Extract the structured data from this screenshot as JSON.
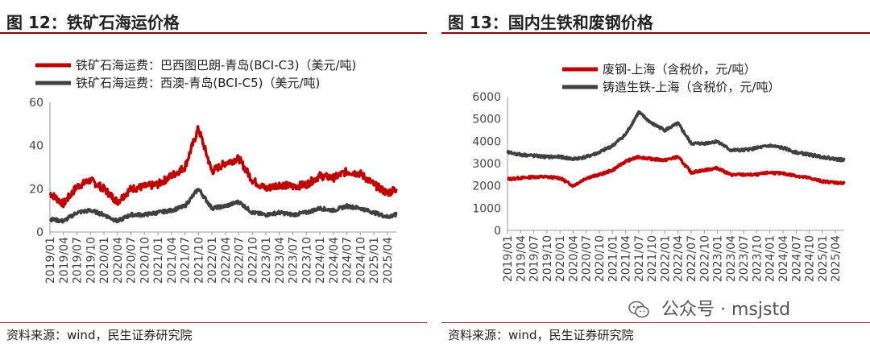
{
  "panels": [
    {
      "title": "图 12：铁矿石海运价格",
      "source": "资料来源：wind，民生证券研究院"
    },
    {
      "title": "图 13：国内生铁和废钢价格",
      "source": "资料来源：wind，民生证券研究院"
    }
  ],
  "watermark": {
    "text": "公众号 · msjstd",
    "icon": "wechat-icon"
  },
  "chart_data": [
    {
      "type": "line",
      "title": "",
      "xlabel": "",
      "ylabel": "",
      "ylim": [
        0,
        60
      ],
      "yticks": [
        "0",
        "20",
        "40",
        "60"
      ],
      "xticks": [
        "2019/01",
        "2019/04",
        "2019/07",
        "2019/10",
        "2020/01",
        "2020/04",
        "2020/07",
        "2020/10",
        "2021/01",
        "2021/04",
        "2021/07",
        "2021/10",
        "2022/01",
        "2022/04",
        "2022/07",
        "2022/10",
        "2023/01",
        "2023/04",
        "2023/07",
        "2023/10",
        "2024/01",
        "2024/04",
        "2024/07",
        "2024/10",
        "2025/01",
        "2025/04"
      ],
      "grid": false,
      "legend": "top-left",
      "x": [
        "2019/01",
        "2019/04",
        "2019/07",
        "2019/10",
        "2020/01",
        "2020/04",
        "2020/07",
        "2020/10",
        "2021/01",
        "2021/04",
        "2021/07",
        "2021/10",
        "2022/01",
        "2022/04",
        "2022/07",
        "2022/10",
        "2023/01",
        "2023/04",
        "2023/07",
        "2023/10",
        "2024/01",
        "2024/04",
        "2024/07",
        "2024/10",
        "2025/01",
        "2025/04",
        "2025/06"
      ],
      "series": [
        {
          "name": "铁矿石海运费：巴西图巴朗-青岛(BCI-C3)（美元/吨)",
          "color": "#c00000",
          "values": [
            18,
            13,
            21,
            24,
            20,
            14,
            20,
            21,
            22,
            26,
            30,
            48,
            28,
            32,
            34,
            24,
            20,
            22,
            21,
            22,
            26,
            25,
            28,
            27,
            22,
            18,
            20
          ]
        },
        {
          "name": "铁矿石海运费：西澳-青岛(BCI-C5)（美元/吨)",
          "color": "#404040",
          "values": [
            6,
            5,
            9,
            10,
            8,
            5,
            8,
            8,
            9,
            10,
            12,
            20,
            11,
            12,
            14,
            9,
            8,
            9,
            8,
            9,
            11,
            10,
            12,
            11,
            9,
            7,
            8
          ]
        }
      ]
    },
    {
      "type": "line",
      "title": "",
      "xlabel": "",
      "ylabel": "",
      "ylim": [
        0,
        6000
      ],
      "yticks": [
        "0",
        "1000",
        "2000",
        "3000",
        "4000",
        "5000",
        "6000"
      ],
      "xticks": [
        "2019/01",
        "2019/04",
        "2019/07",
        "2019/10",
        "2020/01",
        "2020/04",
        "2020/07",
        "2020/10",
        "2021/01",
        "2021/04",
        "2021/07",
        "2021/10",
        "2022/01",
        "2022/04",
        "2022/07",
        "2022/10",
        "2023/01",
        "2023/04",
        "2023/07",
        "2023/10",
        "2024/01",
        "2024/04",
        "2024/07",
        "2024/10",
        "2025/01",
        "2025/04"
      ],
      "grid": false,
      "legend": "top-center",
      "x": [
        "2019/01",
        "2019/04",
        "2019/07",
        "2019/10",
        "2020/01",
        "2020/04",
        "2020/07",
        "2020/10",
        "2021/01",
        "2021/04",
        "2021/07",
        "2021/10",
        "2022/01",
        "2022/04",
        "2022/07",
        "2022/10",
        "2023/01",
        "2023/04",
        "2023/07",
        "2023/10",
        "2024/01",
        "2024/04",
        "2024/07",
        "2024/10",
        "2025/01",
        "2025/04",
        "2025/06"
      ],
      "series": [
        {
          "name": "废钢-上海（含税价，元/吨）",
          "color": "#c00000",
          "values": [
            2300,
            2350,
            2400,
            2400,
            2350,
            2000,
            2350,
            2500,
            2700,
            3100,
            3300,
            3200,
            3150,
            3300,
            2600,
            2700,
            2800,
            2500,
            2500,
            2500,
            2600,
            2550,
            2450,
            2350,
            2200,
            2150,
            2100
          ]
        },
        {
          "name": "铸造生铁-上海（含税价，元/吨）",
          "color": "#404040",
          "values": [
            3500,
            3400,
            3350,
            3300,
            3300,
            3200,
            3300,
            3500,
            3800,
            4300,
            5300,
            4800,
            4500,
            4800,
            3900,
            3900,
            4000,
            3600,
            3600,
            3700,
            3800,
            3700,
            3500,
            3400,
            3300,
            3200,
            3150
          ]
        }
      ]
    }
  ]
}
